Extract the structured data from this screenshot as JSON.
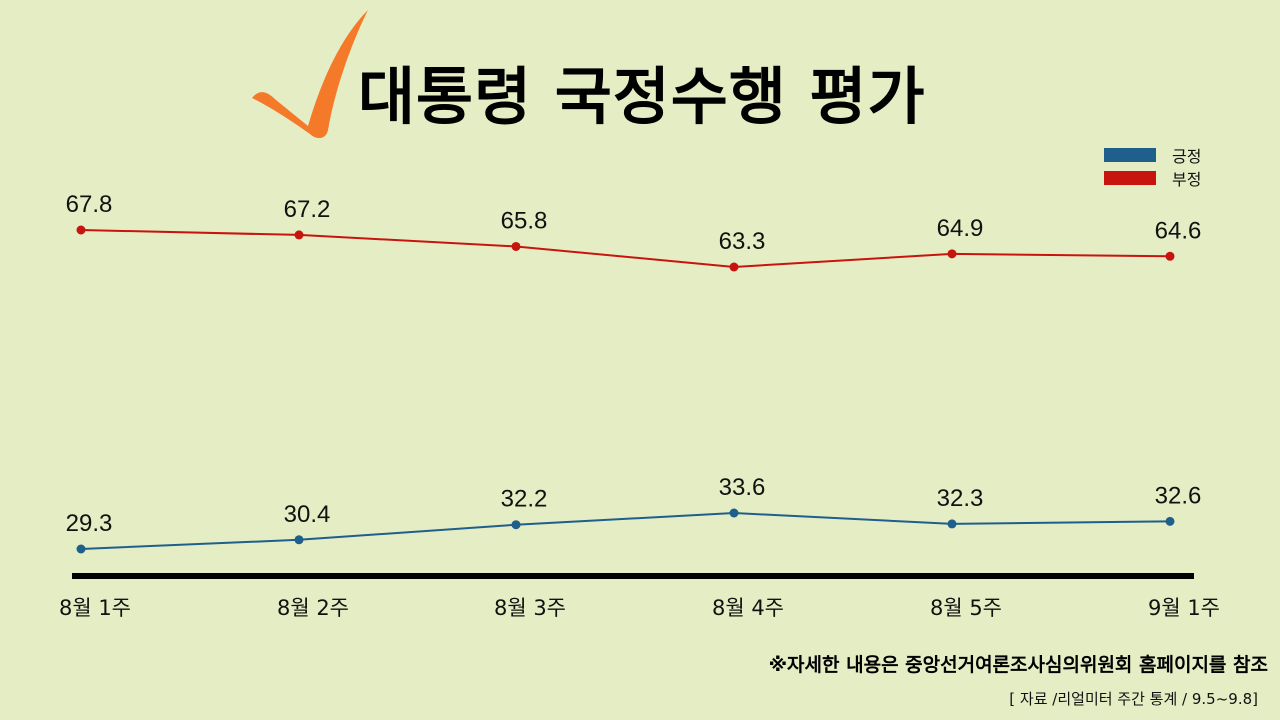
{
  "header": {
    "title": "대통령 국정수행 평가",
    "icon": "checkmark-icon",
    "icon_color": "#f47a2a"
  },
  "legend": [
    {
      "label": "긍정",
      "color": "#1f5f8b"
    },
    {
      "label": "부정",
      "color": "#c8140f"
    }
  ],
  "colors": {
    "background": "#e5edc4",
    "positive": "#1f5f8b",
    "negative": "#c8140f",
    "axis": "#000000"
  },
  "chart_data": {
    "type": "line",
    "title": "대통령 국정수행 평가",
    "categories": [
      "8월 1주",
      "8월 2주",
      "8월 3주",
      "8월 4주",
      "8월 5주",
      "9월 1주"
    ],
    "series": [
      {
        "name": "긍정",
        "color": "#1f5f8b",
        "values": [
          29.3,
          30.4,
          32.2,
          33.6,
          32.3,
          32.6
        ]
      },
      {
        "name": "부정",
        "color": "#c8140f",
        "values": [
          67.8,
          67.2,
          65.8,
          63.3,
          64.9,
          64.6
        ]
      }
    ],
    "xlabel": "",
    "ylabel": "",
    "grid": false,
    "data_labels": true,
    "legend_position": "top-right"
  },
  "footer": {
    "note": "※자세한 내용은 중앙선거여론조사심의위원회 홈페이지를 참조",
    "source": "[ 자료 /리얼미터 주간 통계 / 9.5~9.8]"
  }
}
